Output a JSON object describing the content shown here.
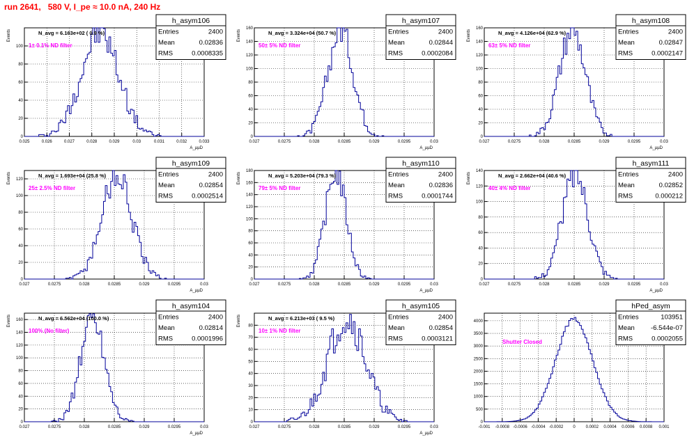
{
  "page_title": "run 2641,   580 V, I_pe ≈ 10.0 nA, 240 Hz",
  "chart_data": [
    {
      "type": "histogram",
      "title": "h_asym106",
      "navg": "N_avg = 6.163e+02 ( 0.9 %)",
      "annotation": "1± 0.1% ND filter",
      "stats": {
        "entries_label": "Entries",
        "entries": "2400",
        "mean_label": "Mean",
        "mean": "0.02836",
        "rms_label": "RMS",
        "rms": "0.0008335"
      },
      "ylabel": "Events",
      "xlabel": "A_µµD",
      "xlim": [
        0.025,
        0.033
      ],
      "ylim": [
        0,
        120
      ],
      "xticks": [
        0.025,
        0.026,
        0.027,
        0.028,
        0.029,
        0.03,
        0.031,
        0.032,
        0.033
      ],
      "xtick_labels": [
        "0.025",
        "0.026",
        "0.027",
        "0.028",
        "0.029",
        "0.03",
        "0.031",
        "0.032",
        "0.033"
      ],
      "yticks": [
        0,
        20,
        40,
        60,
        80,
        100
      ],
      "ytick_labels": [
        "0",
        "20",
        "40",
        "60",
        "80",
        "100"
      ],
      "mean": 0.02836,
      "rms": 0.0008335,
      "peak": 115,
      "grid": true
    },
    {
      "type": "histogram",
      "title": "h_asym107",
      "navg": "N_avg = 3.324e+04 (50.7 %)",
      "annotation": "50± 5% ND filter",
      "stats": {
        "entries_label": "Entries",
        "entries": "2400",
        "mean_label": "Mean",
        "mean": "0.02844",
        "rms_label": "RMS",
        "rms": "0.0002084"
      },
      "ylabel": "Events",
      "xlabel": "A_µµD",
      "xlim": [
        0.027,
        0.03
      ],
      "ylim": [
        0,
        160
      ],
      "xticks": [
        0.027,
        0.0275,
        0.028,
        0.0285,
        0.029,
        0.0295,
        0.03
      ],
      "xtick_labels": [
        "0.027",
        "0.0275",
        "0.028",
        "0.0285",
        "0.029",
        "0.0295",
        "0.03"
      ],
      "yticks": [
        0,
        20,
        40,
        60,
        80,
        100,
        120,
        140,
        160
      ],
      "ytick_labels": [
        "0",
        "20",
        "40",
        "60",
        "80",
        "100",
        "120",
        "140",
        "160"
      ],
      "mean": 0.02844,
      "rms": 0.0002084,
      "peak": 158,
      "grid": true
    },
    {
      "type": "histogram",
      "title": "h_asym108",
      "navg": "N_avg = 4.126e+04 (62.9 %)",
      "annotation": "63± 5% ND filter",
      "stats": {
        "entries_label": "Entries",
        "entries": "2400",
        "mean_label": "Mean",
        "mean": "0.02847",
        "rms_label": "RMS",
        "rms": "0.0002147"
      },
      "ylabel": "Events",
      "xlabel": "A_µµD",
      "xlim": [
        0.027,
        0.03
      ],
      "ylim": [
        0,
        160
      ],
      "xticks": [
        0.027,
        0.0275,
        0.028,
        0.0285,
        0.029,
        0.0295,
        0.03
      ],
      "xtick_labels": [
        "0.027",
        "0.0275",
        "0.028",
        "0.0285",
        "0.029",
        "0.0295",
        "0.03"
      ],
      "yticks": [
        0,
        20,
        40,
        60,
        80,
        100,
        120,
        140,
        160
      ],
      "ytick_labels": [
        "0",
        "20",
        "40",
        "60",
        "80",
        "100",
        "120",
        "140",
        "160"
      ],
      "mean": 0.02847,
      "rms": 0.0002147,
      "peak": 156,
      "grid": true
    },
    {
      "type": "histogram",
      "title": "h_asym109",
      "navg": "N_avg = 1.693e+04 (25.8 %)",
      "annotation": "25± 2.5% ND filter",
      "stats": {
        "entries_label": "Entries",
        "entries": "2400",
        "mean_label": "Mean",
        "mean": "0.02854",
        "rms_label": "RMS",
        "rms": "0.0002514"
      },
      "ylabel": "Events",
      "xlabel": "A_µµD",
      "xlim": [
        0.027,
        0.03
      ],
      "ylim": [
        0,
        130
      ],
      "xticks": [
        0.027,
        0.0275,
        0.028,
        0.0285,
        0.029,
        0.0295,
        0.03
      ],
      "xtick_labels": [
        "0.027",
        "0.0275",
        "0.028",
        "0.0285",
        "0.029",
        "0.0295",
        "0.03"
      ],
      "yticks": [
        0,
        20,
        40,
        60,
        80,
        100,
        120
      ],
      "ytick_labels": [
        "0",
        "20",
        "40",
        "60",
        "80",
        "100",
        "120"
      ],
      "mean": 0.02854,
      "rms": 0.0002514,
      "peak": 126,
      "grid": true
    },
    {
      "type": "histogram",
      "title": "h_asym110",
      "navg": "N_avg = 5.203e+04 (79.3 %)",
      "annotation": "79± 5% ND filter",
      "stats": {
        "entries_label": "Entries",
        "entries": "2400",
        "mean_label": "Mean",
        "mean": "0.02836",
        "rms_label": "RMS",
        "rms": "0.0001744"
      },
      "ylabel": "Events",
      "xlabel": "A_µµD",
      "xlim": [
        0.027,
        0.03
      ],
      "ylim": [
        0,
        180
      ],
      "xticks": [
        0.027,
        0.0275,
        0.028,
        0.0285,
        0.029,
        0.0295,
        0.03
      ],
      "xtick_labels": [
        "0.027",
        "0.0275",
        "0.028",
        "0.0285",
        "0.029",
        "0.0295",
        "0.03"
      ],
      "yticks": [
        0,
        20,
        40,
        60,
        80,
        100,
        120,
        140,
        160,
        180
      ],
      "ytick_labels": [
        "0",
        "20",
        "40",
        "60",
        "80",
        "100",
        "120",
        "140",
        "160",
        "180"
      ],
      "mean": 0.02836,
      "rms": 0.0001744,
      "peak": 178,
      "grid": true
    },
    {
      "type": "histogram",
      "title": "h_asym111",
      "navg": "N_avg = 2.662e+04 (40.6 %)",
      "annotation": "40± 4% ND filter",
      "stats": {
        "entries_label": "Entries",
        "entries": "2400",
        "mean_label": "Mean",
        "mean": "0.02852",
        "rms_label": "RMS",
        "rms": "0.000212"
      },
      "ylabel": "Events",
      "xlabel": "A_µµD",
      "xlim": [
        0.027,
        0.03
      ],
      "ylim": [
        0,
        140
      ],
      "xticks": [
        0.027,
        0.0275,
        0.028,
        0.0285,
        0.029,
        0.0295,
        0.03
      ],
      "xtick_labels": [
        "0.027",
        "0.0275",
        "0.028",
        "0.0285",
        "0.029",
        "0.0295",
        "0.03"
      ],
      "yticks": [
        0,
        20,
        40,
        60,
        80,
        100,
        120,
        140
      ],
      "ytick_labels": [
        "0",
        "20",
        "40",
        "60",
        "80",
        "100",
        "120",
        "140"
      ],
      "mean": 0.02852,
      "rms": 0.000212,
      "peak": 138,
      "grid": true
    },
    {
      "type": "histogram",
      "title": "h_asym104",
      "navg": "N_avg = 6.562e+04 (100.0 %)",
      "annotation": "100% (No filter)",
      "stats": {
        "entries_label": "Entries",
        "entries": "2400",
        "mean_label": "Mean",
        "mean": "0.02814",
        "rms_label": "RMS",
        "rms": "0.0001996"
      },
      "ylabel": "Events",
      "xlabel": "A_µµD",
      "xlim": [
        0.027,
        0.03
      ],
      "ylim": [
        0,
        170
      ],
      "xticks": [
        0.027,
        0.0275,
        0.028,
        0.0285,
        0.029,
        0.0295,
        0.03
      ],
      "xtick_labels": [
        "0.027",
        "0.0275",
        "0.028",
        "0.0285",
        "0.029",
        "0.0295",
        "0.03"
      ],
      "yticks": [
        0,
        20,
        40,
        60,
        80,
        100,
        120,
        140,
        160
      ],
      "ytick_labels": [
        "0",
        "20",
        "40",
        "60",
        "80",
        "100",
        "120",
        "140",
        "160"
      ],
      "mean": 0.02814,
      "rms": 0.0001996,
      "peak": 165,
      "grid": true
    },
    {
      "type": "histogram",
      "title": "h_asym105",
      "navg": "N_avg = 6.213e+03 ( 9.5 %)",
      "annotation": "10± 1% ND filter",
      "stats": {
        "entries_label": "Entries",
        "entries": "2400",
        "mean_label": "Mean",
        "mean": "0.02854",
        "rms_label": "RMS",
        "rms": "0.0003121"
      },
      "ylabel": "Events",
      "xlabel": "A_µµD",
      "xlim": [
        0.027,
        0.03
      ],
      "ylim": [
        0,
        90
      ],
      "xticks": [
        0.027,
        0.0275,
        0.028,
        0.0285,
        0.029,
        0.0295,
        0.03
      ],
      "xtick_labels": [
        "0.027",
        "0.0275",
        "0.028",
        "0.0285",
        "0.029",
        "0.0295",
        "0.03"
      ],
      "yticks": [
        0,
        10,
        20,
        30,
        40,
        50,
        60,
        70,
        80
      ],
      "ytick_labels": [
        "0",
        "10",
        "20",
        "30",
        "40",
        "50",
        "60",
        "70",
        "80"
      ],
      "mean": 0.02854,
      "rms": 0.0003121,
      "peak": 86,
      "grid": true
    },
    {
      "type": "histogram",
      "title": "hPed_asym",
      "navg": "",
      "annotation": "Shutter Closed",
      "stats": {
        "entries_label": "Entries",
        "entries": "103951",
        "mean_label": "Mean",
        "mean": "-6.544e-07",
        "rms_label": "RMS",
        "rms": "0.0002055"
      },
      "ylabel": "",
      "xlabel": "",
      "xlim": [
        -0.001,
        0.001
      ],
      "ylim": [
        0,
        4300
      ],
      "xticks": [
        -0.001,
        -0.0008,
        -0.0006,
        -0.0004,
        -0.0002,
        0,
        0.0002,
        0.0004,
        0.0006,
        0.0008,
        0.001
      ],
      "xtick_labels": [
        "-0.001",
        "-0.0008",
        "-0.0006",
        "-0.0004",
        "-0.0002",
        "0",
        "0.0002",
        "0.0004",
        "0.0006",
        "0.0008",
        "0.001"
      ],
      "yticks": [
        0,
        500,
        1000,
        1500,
        2000,
        2500,
        3000,
        3500,
        4000
      ],
      "ytick_labels": [
        "0",
        "500",
        "1000",
        "1500",
        "2000",
        "2500",
        "3000",
        "3500",
        "4000"
      ],
      "mean": 0.0,
      "rms": 0.0002055,
      "peak": 4080,
      "grid": true
    }
  ]
}
